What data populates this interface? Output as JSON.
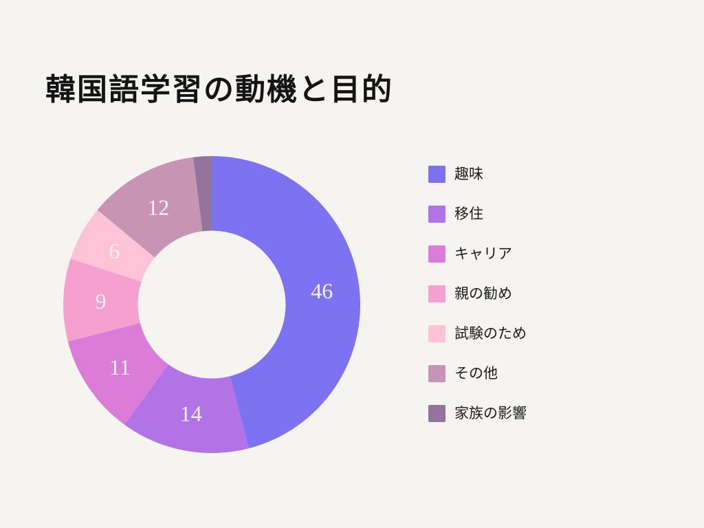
{
  "page": {
    "background_color": "#F5F4F1",
    "title_color": "#141414"
  },
  "chart_data": {
    "type": "pie",
    "subtype": "donut",
    "title": "韓国語学習の動機と目的",
    "legend_position": "right",
    "total": 100,
    "value_label_color": "#F7F2F6",
    "geometry": {
      "outer_radius": 216,
      "inner_radius": 107.5,
      "label_radius": 161.5,
      "start_angle_deg": -90,
      "direction": "clockwise"
    },
    "slices": [
      {
        "label": "趣味",
        "value": 46,
        "color": "#7C72F2",
        "show_value": true
      },
      {
        "label": "移住",
        "value": 14,
        "color": "#B173E5",
        "show_value": true
      },
      {
        "label": "キャリア",
        "value": 11,
        "color": "#DC7CD9",
        "show_value": true
      },
      {
        "label": "親の勧め",
        "value": 9,
        "color": "#F5A0CE",
        "show_value": true
      },
      {
        "label": "試験のため",
        "value": 6,
        "color": "#FEC3D6",
        "show_value": true
      },
      {
        "label": "その他",
        "value": 12,
        "color": "#C795B3",
        "show_value": true
      },
      {
        "label": "家族の影響",
        "value": 2,
        "color": "#94739D",
        "show_value": false
      }
    ]
  }
}
